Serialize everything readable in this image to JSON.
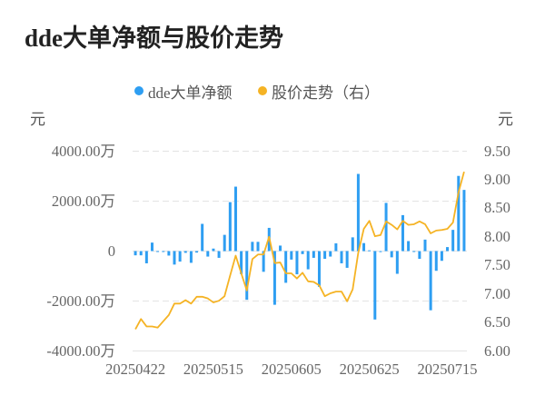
{
  "title": "dde大单净额与股价走势",
  "legend": [
    {
      "label": "dde大单净额",
      "color": "#2e9ef2",
      "icon": "circle-dot-icon"
    },
    {
      "label": "股价走势（右）",
      "color": "#f5b324",
      "icon": "circle-dot-icon"
    }
  ],
  "axes": {
    "left_unit": "元",
    "right_unit": "元",
    "left_ticks": [
      {
        "value": 4000,
        "label": "4000.00万"
      },
      {
        "value": 2000,
        "label": "2000.00万"
      },
      {
        "value": 0,
        "label": "0"
      },
      {
        "value": -2000,
        "label": "-2000.00万"
      },
      {
        "value": -4000,
        "label": "-4000.00万"
      }
    ],
    "right_ticks": [
      {
        "value": 9.5,
        "label": "9.50"
      },
      {
        "value": 9.0,
        "label": "9.00"
      },
      {
        "value": 8.5,
        "label": "8.50"
      },
      {
        "value": 8.0,
        "label": "8.00"
      },
      {
        "value": 7.5,
        "label": "7.50"
      },
      {
        "value": 7.0,
        "label": "7.00"
      },
      {
        "value": 6.5,
        "label": "6.50"
      },
      {
        "value": 6.0,
        "label": "6.00"
      }
    ],
    "x_ticks": [
      {
        "label": "20250422",
        "index": 0
      },
      {
        "label": "20250515",
        "index": 14
      },
      {
        "label": "20250605",
        "index": 28
      },
      {
        "label": "20250625",
        "index": 42
      },
      {
        "label": "20250715",
        "index": 56
      }
    ],
    "gridline_color": "#e3e3e3"
  },
  "chart_data": {
    "type": "bar",
    "title": "dde大单净额与股价走势",
    "xlabel": "",
    "ylabel": "元",
    "y2label": "元",
    "ylim": [
      -4000,
      4000
    ],
    "y2lim": [
      6.0,
      9.5
    ],
    "grid": true,
    "legend_position": "top",
    "categories": [
      "20250422",
      "20250423",
      "20250424",
      "20250425",
      "20250428",
      "20250429",
      "20250430",
      "20250506",
      "20250507",
      "20250508",
      "20250509",
      "20250512",
      "20250513",
      "20250514",
      "20250515",
      "20250516",
      "20250519",
      "20250520",
      "20250521",
      "20250522",
      "20250523",
      "20250526",
      "20250527",
      "20250528",
      "20250529",
      "20250530",
      "20250603",
      "20250604",
      "20250605",
      "20250606",
      "20250609",
      "20250610",
      "20250611",
      "20250612",
      "20250613",
      "20250616",
      "20250617",
      "20250618",
      "20250619",
      "20250620",
      "20250623",
      "20250624",
      "20250625",
      "20250626",
      "20250627",
      "20250630",
      "20250701",
      "20250702",
      "20250703",
      "20250704",
      "20250707",
      "20250708",
      "20250709",
      "20250710",
      "20250711",
      "20250714",
      "20250715",
      "20250716",
      "20250717",
      "20250718"
    ],
    "series": [
      {
        "name": "dde大单净额",
        "type": "bar",
        "axis": "left",
        "unit": "万",
        "color": "#2e9ef2",
        "values": [
          -170,
          -170,
          -490,
          340,
          -30,
          -30,
          -180,
          -540,
          -420,
          -70,
          -470,
          -60,
          1090,
          -220,
          100,
          -270,
          650,
          1960,
          2580,
          -920,
          -1950,
          370,
          370,
          -830,
          930,
          -2150,
          220,
          -1270,
          -340,
          -930,
          -120,
          -730,
          -270,
          -1430,
          -310,
          -220,
          310,
          -490,
          -670,
          550,
          3090,
          320,
          30,
          -2740,
          -40,
          1930,
          -250,
          -910,
          1440,
          400,
          -30,
          -310,
          460,
          -2370,
          -790,
          -390,
          160,
          850,
          3010,
          2450
        ]
      },
      {
        "name": "股价走势（右）",
        "type": "line",
        "axis": "right",
        "color": "#f5b324",
        "values": [
          6.38,
          6.56,
          6.43,
          6.43,
          6.41,
          6.52,
          6.63,
          6.83,
          6.83,
          6.89,
          6.83,
          6.95,
          6.95,
          6.92,
          6.85,
          6.88,
          6.96,
          7.32,
          7.67,
          7.36,
          7.06,
          7.61,
          7.69,
          7.69,
          8.0,
          7.54,
          7.55,
          7.36,
          7.36,
          7.27,
          7.37,
          7.22,
          7.21,
          7.15,
          6.96,
          7.01,
          7.04,
          7.04,
          6.87,
          7.08,
          7.72,
          8.14,
          8.28,
          8.01,
          8.03,
          8.27,
          8.21,
          8.13,
          8.28,
          8.21,
          8.22,
          8.27,
          8.22,
          8.06,
          8.11,
          8.12,
          8.14,
          8.25,
          8.78,
          9.14
        ]
      }
    ]
  }
}
